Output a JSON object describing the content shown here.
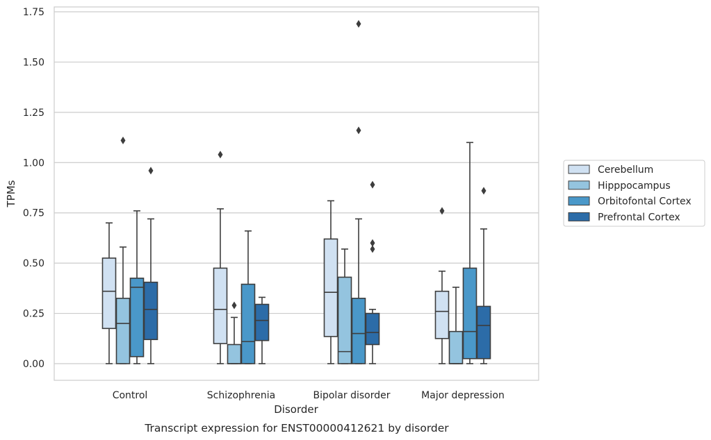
{
  "caption": "Transcript expression for ENST00000412621 by disorder",
  "chart_data": {
    "type": "box",
    "title": "",
    "xlabel": "Disorder",
    "ylabel": "TPMs",
    "ylim": [
      -0.08,
      1.77
    ],
    "yticks": [
      0.0,
      0.25,
      0.5,
      0.75,
      1.0,
      1.25,
      1.5,
      1.75
    ],
    "ytick_labels": [
      "0.00",
      "0.25",
      "0.50",
      "0.75",
      "1.00",
      "1.25",
      "1.50",
      "1.75"
    ],
    "grid": "horizontal",
    "legend_position": "right",
    "categories": [
      "Control",
      "Schizophrenia",
      "Bipolar disorder",
      "Major depression"
    ],
    "series": [
      {
        "name": "Cerebellum",
        "color": "#d0e1f2",
        "boxes": [
          {
            "whisker_low": 0.0,
            "q1": 0.175,
            "median": 0.36,
            "q3": 0.525,
            "whisker_high": 0.7,
            "outliers": []
          },
          {
            "whisker_low": 0.0,
            "q1": 0.1,
            "median": 0.27,
            "q3": 0.475,
            "whisker_high": 0.77,
            "outliers": [
              1.04
            ]
          },
          {
            "whisker_low": 0.0,
            "q1": 0.135,
            "median": 0.355,
            "q3": 0.62,
            "whisker_high": 0.81,
            "outliers": []
          },
          {
            "whisker_low": 0.0,
            "q1": 0.125,
            "median": 0.26,
            "q3": 0.36,
            "whisker_high": 0.46,
            "outliers": [
              0.76
            ]
          }
        ]
      },
      {
        "name": "Hipppocampus",
        "color": "#94c4df",
        "boxes": [
          {
            "whisker_low": 0.0,
            "q1": 0.0,
            "median": 0.2,
            "q3": 0.325,
            "whisker_high": 0.58,
            "outliers": [
              1.11
            ]
          },
          {
            "whisker_low": 0.0,
            "q1": 0.0,
            "median": 0.0,
            "q3": 0.095,
            "whisker_high": 0.23,
            "outliers": [
              0.29
            ]
          },
          {
            "whisker_low": 0.0,
            "q1": 0.0,
            "median": 0.06,
            "q3": 0.43,
            "whisker_high": 0.57,
            "outliers": []
          },
          {
            "whisker_low": 0.0,
            "q1": 0.0,
            "median": 0.0,
            "q3": 0.16,
            "whisker_high": 0.38,
            "outliers": []
          }
        ]
      },
      {
        "name": "Orbitofontal Cortex",
        "color": "#4a98c9",
        "boxes": [
          {
            "whisker_low": 0.0,
            "q1": 0.035,
            "median": 0.38,
            "q3": 0.425,
            "whisker_high": 0.76,
            "outliers": []
          },
          {
            "whisker_low": 0.0,
            "q1": 0.0,
            "median": 0.11,
            "q3": 0.395,
            "whisker_high": 0.66,
            "outliers": []
          },
          {
            "whisker_low": 0.0,
            "q1": 0.0,
            "median": 0.15,
            "q3": 0.325,
            "whisker_high": 0.72,
            "outliers": [
              1.69,
              1.16
            ]
          },
          {
            "whisker_low": 0.0,
            "q1": 0.025,
            "median": 0.16,
            "q3": 0.475,
            "whisker_high": 1.1,
            "outliers": []
          }
        ]
      },
      {
        "name": "Prefrontal Cortex",
        "color": "#2c6ca8",
        "boxes": [
          {
            "whisker_low": 0.0,
            "q1": 0.12,
            "median": 0.27,
            "q3": 0.405,
            "whisker_high": 0.72,
            "outliers": [
              0.96
            ]
          },
          {
            "whisker_low": 0.0,
            "q1": 0.115,
            "median": 0.215,
            "q3": 0.295,
            "whisker_high": 0.33,
            "outliers": []
          },
          {
            "whisker_low": 0.0,
            "q1": 0.095,
            "median": 0.155,
            "q3": 0.25,
            "whisker_high": 0.27,
            "outliers": [
              0.89,
              0.6,
              0.57
            ]
          },
          {
            "whisker_low": 0.0,
            "q1": 0.025,
            "median": 0.19,
            "q3": 0.285,
            "whisker_high": 0.67,
            "outliers": [
              0.86
            ]
          }
        ]
      }
    ]
  }
}
